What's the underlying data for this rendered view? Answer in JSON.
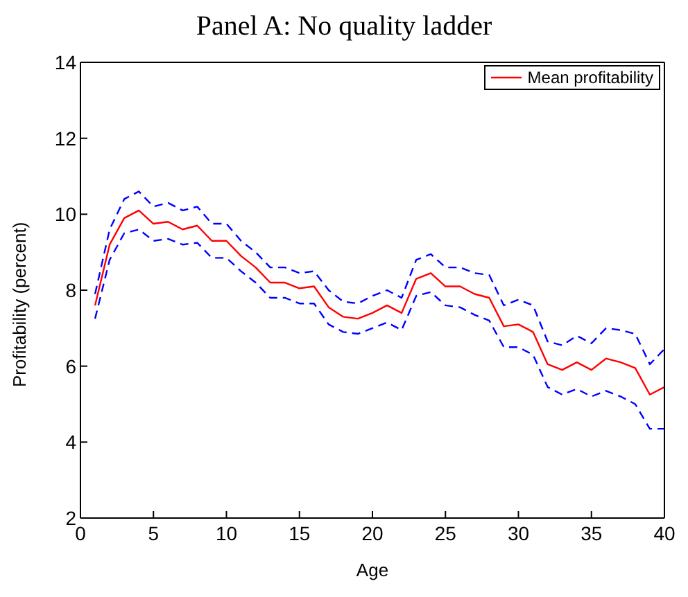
{
  "chart_data": {
    "type": "line",
    "title": "Panel A: No quality ladder",
    "xlabel": "Age",
    "ylabel": "Profitability (percent)",
    "x": [
      1,
      2,
      3,
      4,
      5,
      6,
      7,
      8,
      9,
      10,
      11,
      12,
      13,
      14,
      15,
      16,
      17,
      18,
      19,
      20,
      21,
      22,
      23,
      24,
      25,
      26,
      27,
      28,
      29,
      30,
      31,
      32,
      33,
      34,
      35,
      36,
      37,
      38,
      39,
      40
    ],
    "series": [
      {
        "name": "Mean profitability",
        "color": "#ff0000",
        "line_style": "solid",
        "values": [
          7.6,
          9.2,
          9.9,
          10.1,
          9.75,
          9.8,
          9.6,
          9.7,
          9.3,
          9.3,
          8.9,
          8.6,
          8.2,
          8.2,
          8.05,
          8.1,
          7.55,
          7.3,
          7.25,
          7.4,
          7.6,
          7.4,
          8.3,
          8.45,
          8.1,
          8.1,
          7.9,
          7.8,
          7.05,
          7.1,
          6.9,
          6.05,
          5.9,
          6.1,
          5.9,
          6.2,
          6.1,
          5.95,
          5.25,
          5.45
        ]
      },
      {
        "color": "#0000ff",
        "line_style": "dashed",
        "values": [
          7.9,
          9.6,
          10.4,
          10.6,
          10.2,
          10.3,
          10.1,
          10.2,
          9.75,
          9.75,
          9.3,
          9.0,
          8.6,
          8.6,
          8.45,
          8.5,
          8.0,
          7.7,
          7.65,
          7.85,
          8.0,
          7.8,
          8.8,
          8.95,
          8.6,
          8.6,
          8.45,
          8.4,
          7.6,
          7.75,
          7.6,
          6.65,
          6.55,
          6.8,
          6.6,
          7.0,
          6.95,
          6.85,
          6.05,
          6.45
        ]
      },
      {
        "color": "#0000ff",
        "line_style": "dashed",
        "values": [
          7.25,
          8.8,
          9.5,
          9.6,
          9.3,
          9.35,
          9.2,
          9.25,
          8.85,
          8.85,
          8.5,
          8.2,
          7.8,
          7.8,
          7.65,
          7.65,
          7.1,
          6.9,
          6.85,
          7.0,
          7.15,
          6.95,
          7.85,
          7.95,
          7.6,
          7.55,
          7.35,
          7.2,
          6.5,
          6.5,
          6.3,
          5.45,
          5.25,
          5.4,
          5.2,
          5.35,
          5.2,
          5.0,
          4.35,
          4.35
        ]
      }
    ],
    "xlim": [
      0,
      40
    ],
    "xticks": [
      0,
      5,
      10,
      15,
      20,
      25,
      30,
      35,
      40
    ],
    "ylim": [
      2,
      14
    ],
    "yticks": [
      2,
      4,
      6,
      8,
      10,
      12,
      14
    ],
    "legend": "top right",
    "marker": "none"
  }
}
